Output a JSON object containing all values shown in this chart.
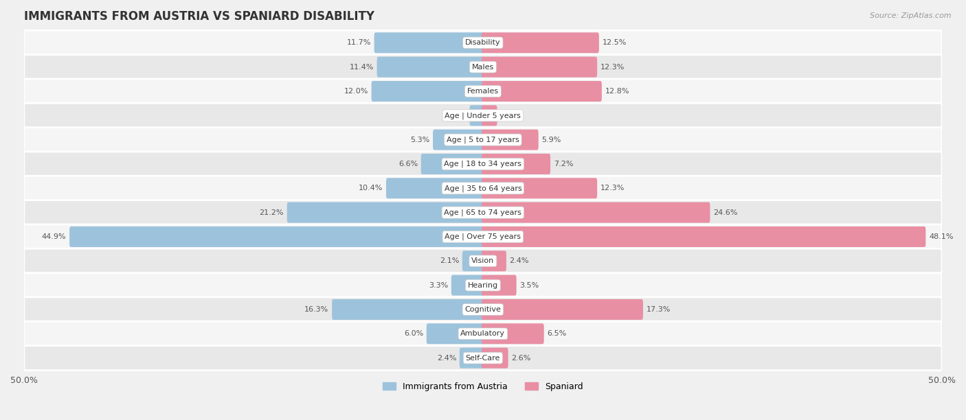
{
  "title": "IMMIGRANTS FROM AUSTRIA VS SPANIARD DISABILITY",
  "source": "Source: ZipAtlas.com",
  "categories": [
    "Disability",
    "Males",
    "Females",
    "Age | Under 5 years",
    "Age | 5 to 17 years",
    "Age | 18 to 34 years",
    "Age | 35 to 64 years",
    "Age | 65 to 74 years",
    "Age | Over 75 years",
    "Vision",
    "Hearing",
    "Cognitive",
    "Ambulatory",
    "Self-Care"
  ],
  "austria_values": [
    11.7,
    11.4,
    12.0,
    1.3,
    5.3,
    6.6,
    10.4,
    21.2,
    44.9,
    2.1,
    3.3,
    16.3,
    6.0,
    2.4
  ],
  "spaniard_values": [
    12.5,
    12.3,
    12.8,
    1.4,
    5.9,
    7.2,
    12.3,
    24.6,
    48.1,
    2.4,
    3.5,
    17.3,
    6.5,
    2.6
  ],
  "austria_color": "#9dc3dc",
  "spaniard_color": "#e88fa4",
  "austria_label": "Immigrants from Austria",
  "spaniard_label": "Spaniard",
  "axis_limit": 50.0,
  "row_bg_light": "#f5f5f5",
  "row_bg_dark": "#e8e8e8",
  "bar_height": 0.55,
  "title_fontsize": 12,
  "category_fontsize": 8,
  "value_fontsize": 8
}
